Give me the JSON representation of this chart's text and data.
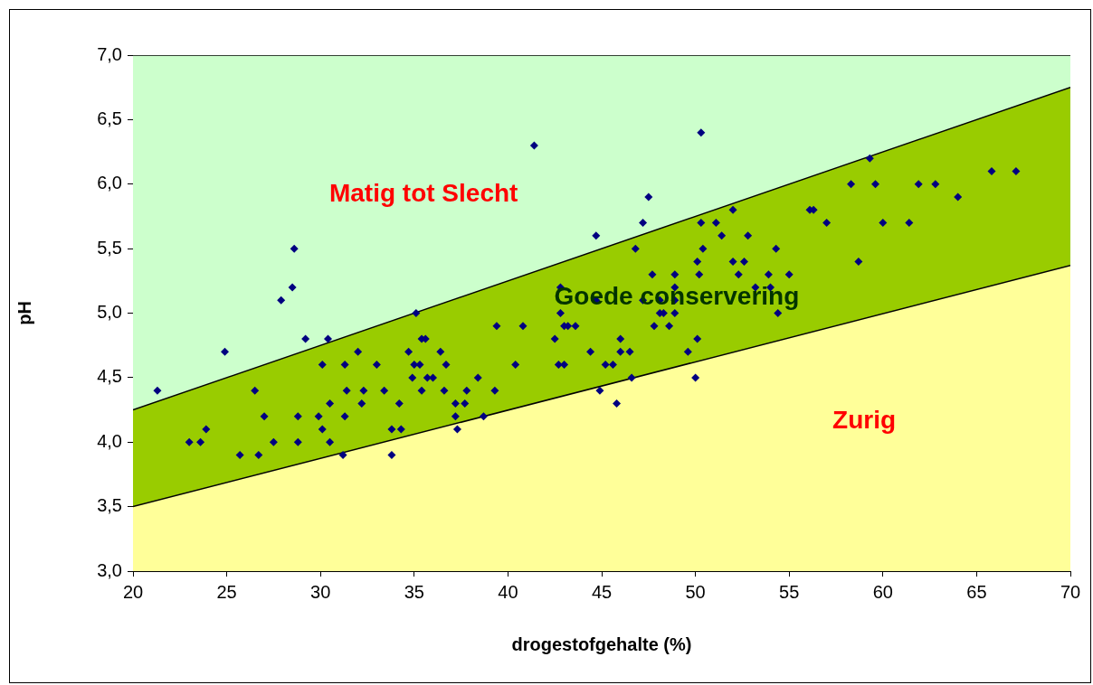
{
  "chart_data": {
    "type": "scatter",
    "xlabel": "drogestofgehalte (%)",
    "ylabel": "pH",
    "xlim": [
      20,
      70
    ],
    "xticks": [
      20,
      25,
      30,
      35,
      40,
      45,
      50,
      55,
      60,
      65,
      70
    ],
    "ylim": [
      3.0,
      7.0
    ],
    "yticks": [
      {
        "value": 3.0,
        "label": "3,0"
      },
      {
        "value": 3.5,
        "label": "3,5"
      },
      {
        "value": 4.0,
        "label": "4,0"
      },
      {
        "value": 4.5,
        "label": "4,5"
      },
      {
        "value": 5.0,
        "label": "5,0"
      },
      {
        "value": 5.5,
        "label": "5,5"
      },
      {
        "value": 6.0,
        "label": "6,0"
      },
      {
        "value": 6.5,
        "label": "6,5"
      },
      {
        "value": 7.0,
        "label": "7,0"
      }
    ],
    "grid": false,
    "legend": false,
    "annotations": [
      "Matig tot Slecht",
      "Goede conservering",
      "Zurig"
    ],
    "series": [
      {
        "type": "area",
        "color": "#ffff99",
        "x": [
          20,
          70
        ],
        "values": [
          3.5,
          5.37
        ]
      },
      {
        "type": "area",
        "color": "#99cc00",
        "x": [
          20,
          70
        ],
        "values": [
          4.25,
          6.75
        ]
      },
      {
        "type": "area",
        "color": "#ccffcc",
        "x": [
          20,
          70
        ],
        "values": [
          7.0,
          7.0
        ]
      },
      {
        "color": "#000080",
        "marker": "diamond",
        "x": [
          21.3,
          23.0,
          23.6,
          23.9,
          24.9,
          25.7,
          26.5,
          26.7,
          27.0,
          27.5,
          27.9,
          28.5,
          28.6,
          28.8,
          28.8,
          29.2,
          29.9,
          30.1,
          30.1,
          30.4,
          30.5,
          30.5,
          31.2,
          31.3,
          31.3,
          31.4,
          32.0,
          35.1,
          35.4,
          35.6,
          34.7,
          36.4,
          33.0,
          35.0,
          35.3,
          36.7,
          34.9,
          35.7,
          36.0,
          38.4,
          32.3,
          33.4,
          35.4,
          36.6,
          37.8,
          39.3,
          32.2,
          34.2,
          37.2,
          37.7,
          37.2,
          38.7,
          33.8,
          34.3,
          37.3,
          33.8,
          39.4,
          40.8,
          40.4,
          41.4,
          50.3,
          47.5,
          44.7,
          47.2,
          50.3,
          51.1,
          51.4,
          46.8,
          50.4,
          50.1,
          47.7,
          48.9,
          50.2,
          42.8,
          48.9,
          44.7,
          47.2,
          48.1,
          48.9,
          42.8,
          48.1,
          48.3,
          48.9,
          43.0,
          43.2,
          43.6,
          47.8,
          48.6,
          42.5,
          46.0,
          50.1,
          44.4,
          46.0,
          46.5,
          49.6,
          42.7,
          43.0,
          45.2,
          45.6,
          46.6,
          50.0,
          44.9,
          45.8,
          59.3,
          58.3,
          59.6,
          52.0,
          56.1,
          56.3,
          57.0,
          60.0,
          52.8,
          54.3,
          52.0,
          52.6,
          58.7,
          52.3,
          53.9,
          55.0,
          53.2,
          54.0,
          54.4,
          65.8,
          67.1,
          61.9,
          62.8,
          64.0,
          61.4
        ],
        "values": [
          4.4,
          4.0,
          4.0,
          4.1,
          4.7,
          3.9,
          4.4,
          3.9,
          4.2,
          4.0,
          5.1,
          5.2,
          5.5,
          4.0,
          4.2,
          4.8,
          4.2,
          4.6,
          4.1,
          4.8,
          4.3,
          4.0,
          3.9,
          4.2,
          4.6,
          4.4,
          4.7,
          5.0,
          4.8,
          4.8,
          4.7,
          4.7,
          4.6,
          4.6,
          4.6,
          4.6,
          4.5,
          4.5,
          4.5,
          4.5,
          4.4,
          4.4,
          4.4,
          4.4,
          4.4,
          4.4,
          4.3,
          4.3,
          4.3,
          4.3,
          4.2,
          4.2,
          4.1,
          4.1,
          4.1,
          3.9,
          4.9,
          4.9,
          4.6,
          6.3,
          6.4,
          5.9,
          5.6,
          5.7,
          5.7,
          5.7,
          5.6,
          5.5,
          5.5,
          5.4,
          5.3,
          5.3,
          5.3,
          5.2,
          5.2,
          5.1,
          5.1,
          5.1,
          5.1,
          5.0,
          5.0,
          5.0,
          5.0,
          4.9,
          4.9,
          4.9,
          4.9,
          4.9,
          4.8,
          4.8,
          4.8,
          4.7,
          4.7,
          4.7,
          4.7,
          4.6,
          4.6,
          4.6,
          4.6,
          4.5,
          4.5,
          4.4,
          4.3,
          6.2,
          6.0,
          6.0,
          5.8,
          5.8,
          5.8,
          5.7,
          5.7,
          5.6,
          5.5,
          5.4,
          5.4,
          5.4,
          5.3,
          5.3,
          5.3,
          5.2,
          5.2,
          5.0,
          6.1,
          6.1,
          6.0,
          6.0,
          5.9,
          5.7
        ]
      }
    ]
  }
}
